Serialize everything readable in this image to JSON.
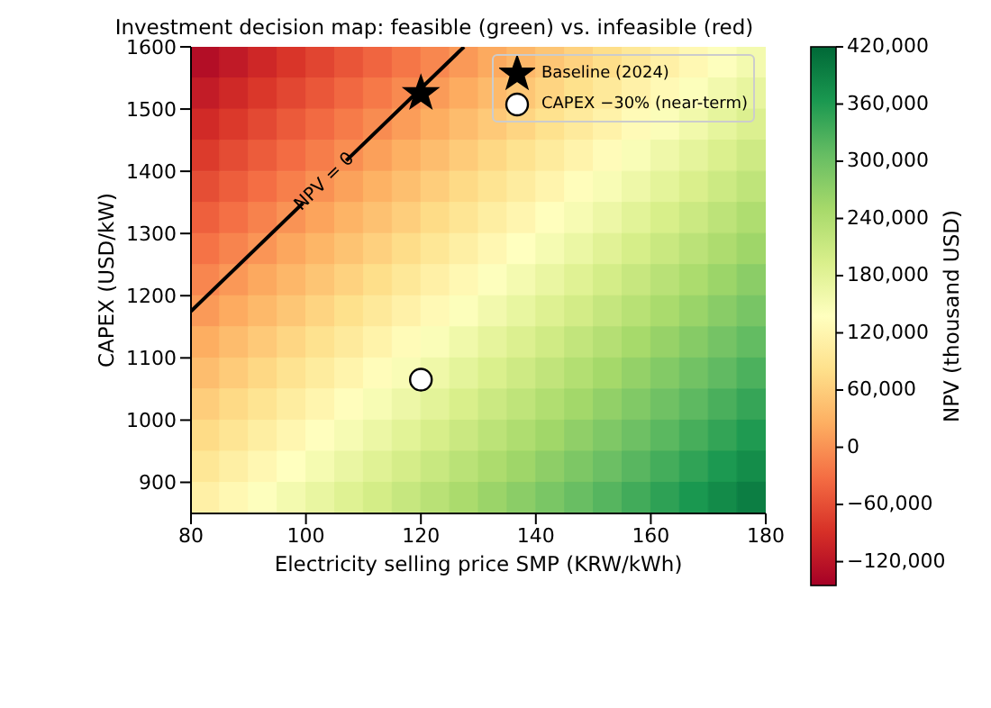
{
  "chart_data": {
    "type": "heatmap",
    "title": "Investment decision map: feasible (green) vs. infeasible (red)",
    "xlabel": "Electricity selling price SMP (KRW/kWh)",
    "ylabel": "CAPEX (USD/kW)",
    "clabel": "NPV (thousand USD)",
    "cells": [
      [
        -129000,
        -114000,
        -99000,
        -84000,
        -69000,
        -54000,
        -39000,
        -24000,
        -9000,
        6000,
        21000,
        35000,
        50000,
        65000,
        80000,
        95000,
        110000,
        125000,
        140000,
        155000
      ],
      [
        -112000,
        -97000,
        -82000,
        -67000,
        -52000,
        -37000,
        -22000,
        -7000,
        8000,
        23000,
        38000,
        52000,
        67000,
        82000,
        97000,
        112000,
        127000,
        142000,
        157000,
        172000
      ],
      [
        -95000,
        -80000,
        -65000,
        -50000,
        -35000,
        -20000,
        -5000,
        10000,
        25000,
        40000,
        55000,
        69000,
        84000,
        99000,
        114000,
        129000,
        144000,
        159000,
        174000,
        189000
      ],
      [
        -78000,
        -63000,
        -48000,
        -33000,
        -18000,
        -3000,
        12000,
        27000,
        42000,
        57000,
        72000,
        86000,
        101000,
        116000,
        131000,
        146000,
        161000,
        176000,
        191000,
        206000
      ],
      [
        -61000,
        -46000,
        -31000,
        -16000,
        -1000,
        14000,
        29000,
        44000,
        59000,
        74000,
        89000,
        103000,
        118000,
        133000,
        148000,
        163000,
        178000,
        193000,
        208000,
        223000
      ],
      [
        -44000,
        -29000,
        -14000,
        1000,
        16000,
        31000,
        46000,
        61000,
        76000,
        91000,
        106000,
        120000,
        135000,
        150000,
        165000,
        180000,
        195000,
        210000,
        225000,
        240000
      ],
      [
        -27000,
        -12000,
        3000,
        18000,
        33000,
        48000,
        63000,
        78000,
        93000,
        108000,
        123000,
        137000,
        152000,
        167000,
        182000,
        197000,
        212000,
        227000,
        242000,
        257000
      ],
      [
        -10000,
        5000,
        20000,
        35000,
        50000,
        65000,
        80000,
        95000,
        110000,
        125000,
        140000,
        154000,
        169000,
        184000,
        199000,
        214000,
        229000,
        244000,
        259000,
        274000
      ],
      [
        7000,
        22000,
        37000,
        52000,
        67000,
        82000,
        97000,
        112000,
        127000,
        142000,
        157000,
        171000,
        186000,
        201000,
        216000,
        231000,
        246000,
        261000,
        276000,
        291000
      ],
      [
        25000,
        40000,
        55000,
        70000,
        85000,
        100000,
        115000,
        130000,
        145000,
        160000,
        175000,
        189000,
        204000,
        219000,
        234000,
        249000,
        264000,
        279000,
        294000,
        309000
      ],
      [
        42000,
        57000,
        72000,
        87000,
        102000,
        117000,
        132000,
        147000,
        162000,
        177000,
        192000,
        206000,
        221000,
        236000,
        251000,
        266000,
        281000,
        296000,
        311000,
        326000
      ],
      [
        59000,
        74000,
        89000,
        104000,
        119000,
        134000,
        149000,
        164000,
        179000,
        194000,
        209000,
        223000,
        238000,
        253000,
        268000,
        283000,
        298000,
        313000,
        328000,
        343000
      ],
      [
        76000,
        91000,
        106000,
        121000,
        136000,
        151000,
        166000,
        181000,
        196000,
        211000,
        226000,
        240000,
        255000,
        270000,
        285000,
        300000,
        315000,
        330000,
        345000,
        360000
      ],
      [
        93000,
        108000,
        123000,
        138000,
        153000,
        168000,
        183000,
        198000,
        213000,
        228000,
        243000,
        257000,
        272000,
        287000,
        302000,
        317000,
        332000,
        347000,
        362000,
        377000
      ],
      [
        110000,
        125000,
        140000,
        155000,
        170000,
        185000,
        200000,
        215000,
        230000,
        245000,
        260000,
        274000,
        289000,
        304000,
        319000,
        334000,
        349000,
        364000,
        379000,
        394000
      ]
    ],
    "xlim": [
      80,
      180
    ],
    "xticks": [
      80,
      100,
      120,
      140,
      160,
      180
    ],
    "ylim": [
      850,
      1600
    ],
    "yticks": [
      900,
      1000,
      1100,
      1200,
      1300,
      1400,
      1500,
      1600
    ],
    "clim": [
      -145000,
      420000
    ],
    "cticks": [
      {
        "value": -120000,
        "label": "−120,000"
      },
      {
        "value": -60000,
        "label": "−60,000"
      },
      {
        "value": 0,
        "label": "0"
      },
      {
        "value": 60000,
        "label": "60,000"
      },
      {
        "value": 120000,
        "label": "120,000"
      },
      {
        "value": 180000,
        "label": "180,000"
      },
      {
        "value": 240000,
        "label": "240,000"
      },
      {
        "value": 300000,
        "label": "300,000"
      },
      {
        "value": 360000,
        "label": "360,000"
      },
      {
        "value": 420000,
        "label": "420,000"
      }
    ],
    "series": [
      {
        "type": "line",
        "color": "#000000",
        "x": [
          80,
          99.5,
          103,
          107,
          127.5
        ],
        "values": [
          1175,
          1349,
          null,
          1417,
          1600
        ]
      },
      {
        "type": "scatter",
        "name": "Baseline (2024)",
        "color": "#000000",
        "marker": "star",
        "x": [
          120
        ],
        "values": [
          1525
        ]
      },
      {
        "type": "scatter",
        "name": "CAPEX −30% (near-term)",
        "color": "#ffffff",
        "marker": "circle",
        "x": [
          120
        ],
        "values": [
          1065
        ]
      }
    ],
    "annotations": [
      "NPV = 0"
    ],
    "legend": "top right"
  }
}
